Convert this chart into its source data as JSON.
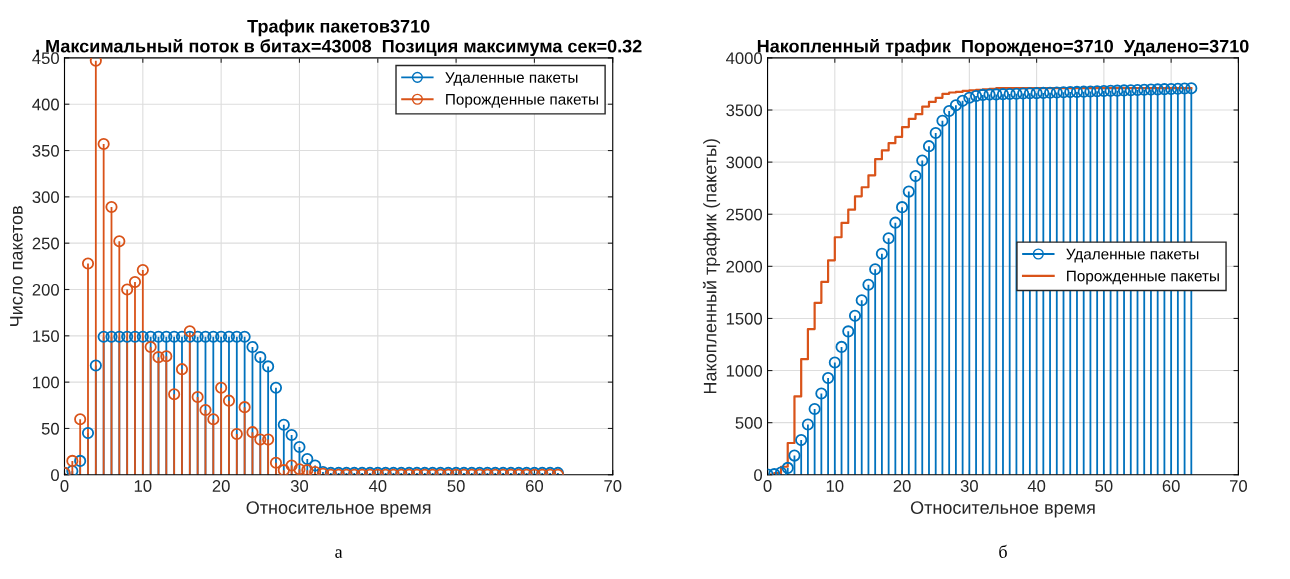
{
  "chart_data": [
    {
      "type": "lollipop",
      "title": "Трафик пакетов3710",
      "subtitle": ", Максимальный поток в битах=43008  Позиция максимума сек=0.32",
      "xlabel": "Относительное время",
      "ylabel": "Число пакетов",
      "annotations": [
        "а"
      ],
      "x": [
        0,
        1,
        2,
        3,
        4,
        5,
        6,
        7,
        8,
        9,
        10,
        11,
        12,
        13,
        14,
        15,
        16,
        17,
        18,
        19,
        20,
        21,
        22,
        23,
        24,
        25,
        26,
        27,
        28,
        29,
        30,
        31,
        32,
        33,
        34,
        35,
        36,
        37,
        38,
        39,
        40,
        41,
        42,
        43,
        44,
        45,
        46,
        47,
        48,
        49,
        50,
        51,
        52,
        53,
        54,
        55,
        56,
        57,
        58,
        59,
        60,
        61,
        62,
        63
      ],
      "series": [
        {
          "name": "Удаленные пакеты",
          "color": "#0072bd",
          "values": [
            2,
            4,
            15,
            45,
            118,
            149,
            149,
            149,
            149,
            149,
            149,
            149,
            149,
            149,
            149,
            149,
            149,
            149,
            149,
            149,
            149,
            149,
            149,
            149,
            138,
            127,
            117,
            94,
            54,
            43,
            30,
            17,
            10,
            3,
            2,
            2,
            2,
            2,
            2,
            2,
            2,
            2,
            2,
            2,
            2,
            2,
            2,
            2,
            2,
            2,
            2,
            2,
            2,
            2,
            2,
            2,
            2,
            2,
            2,
            2,
            2,
            2,
            2,
            2
          ]
        },
        {
          "name": "Порожденные пакеты",
          "color": "#d95319",
          "values": [
            2,
            15,
            60,
            228,
            447,
            357,
            289,
            252,
            200,
            208,
            221,
            138,
            127,
            128,
            87,
            114,
            155,
            84,
            70,
            60,
            94,
            80,
            44,
            73,
            46,
            38,
            38,
            13,
            5,
            10,
            6,
            5,
            3,
            1,
            0,
            0,
            0,
            0,
            0,
            0,
            0,
            0,
            0,
            0,
            0,
            0,
            0,
            0,
            0,
            0,
            0,
            0,
            0,
            0,
            0,
            0,
            0,
            0,
            0,
            0,
            0,
            0,
            0,
            0
          ]
        }
      ],
      "xlim": [
        0,
        70
      ],
      "xticks": [
        0,
        10,
        20,
        30,
        40,
        50,
        60,
        70
      ],
      "ylim": [
        0,
        450
      ],
      "yticks": [
        0,
        50,
        100,
        150,
        200,
        250,
        300,
        350,
        400,
        450
      ],
      "grid": true,
      "legend": "top right",
      "marker": "circle"
    },
    {
      "type": "lollipop",
      "title": "Накопленный трафик  Порождено=3710  Удалено=3710",
      "xlabel": "Относительное время",
      "ylabel": "Накопленный трафик (пакеты)",
      "annotations": [
        "б"
      ],
      "x": [
        0,
        1,
        2,
        3,
        4,
        5,
        6,
        7,
        8,
        9,
        10,
        11,
        12,
        13,
        14,
        15,
        16,
        17,
        18,
        19,
        20,
        21,
        22,
        23,
        24,
        25,
        26,
        27,
        28,
        29,
        30,
        31,
        32,
        33,
        34,
        35,
        36,
        37,
        38,
        39,
        40,
        41,
        42,
        43,
        44,
        45,
        46,
        47,
        48,
        49,
        50,
        51,
        52,
        53,
        54,
        55,
        56,
        57,
        58,
        59,
        60,
        61,
        62,
        63
      ],
      "series": [
        {
          "name": "Удаленные пакеты",
          "color": "#0072bd",
          "values": [
            2,
            6,
            21,
            66,
            184,
            333,
            482,
            631,
            780,
            929,
            1078,
            1227,
            1376,
            1525,
            1674,
            1823,
            1972,
            2121,
            2270,
            2419,
            2568,
            2717,
            2866,
            3015,
            3153,
            3280,
            3397,
            3491,
            3545,
            3588,
            3618,
            3635,
            3645,
            3648,
            3650,
            3652,
            3654,
            3656,
            3658,
            3660,
            3662,
            3664,
            3666,
            3668,
            3670,
            3672,
            3674,
            3676,
            3678,
            3680,
            3682,
            3684,
            3686,
            3688,
            3690,
            3692,
            3694,
            3696,
            3698,
            3700,
            3702,
            3704,
            3706,
            3708
          ]
        },
        {
          "name": "Порожденные пакеты",
          "color": "#d95319",
          "type": "step",
          "marker": "none",
          "values": [
            2,
            17,
            77,
            305,
            752,
            1109,
            1398,
            1650,
            1850,
            2058,
            2279,
            2417,
            2544,
            2672,
            2759,
            2873,
            3028,
            3112,
            3182,
            3242,
            3336,
            3416,
            3460,
            3533,
            3579,
            3617,
            3655,
            3668,
            3673,
            3683,
            3689,
            3694,
            3697,
            3703,
            3710,
            3710,
            3710,
            3710,
            3710,
            3710,
            3710,
            3710,
            3710,
            3710,
            3710,
            3710,
            3710,
            3710,
            3710,
            3710,
            3710,
            3710,
            3710,
            3710,
            3710,
            3710,
            3710,
            3710,
            3710,
            3710,
            3710,
            3710,
            3710,
            3710
          ]
        }
      ],
      "xlim": [
        0,
        70
      ],
      "xticks": [
        0,
        10,
        20,
        30,
        40,
        50,
        60,
        70
      ],
      "ylim": [
        0,
        4000
      ],
      "yticks": [
        0,
        500,
        1000,
        1500,
        2000,
        2500,
        3000,
        3500,
        4000
      ],
      "grid": true,
      "legend": "center right",
      "marker": "circle"
    }
  ]
}
